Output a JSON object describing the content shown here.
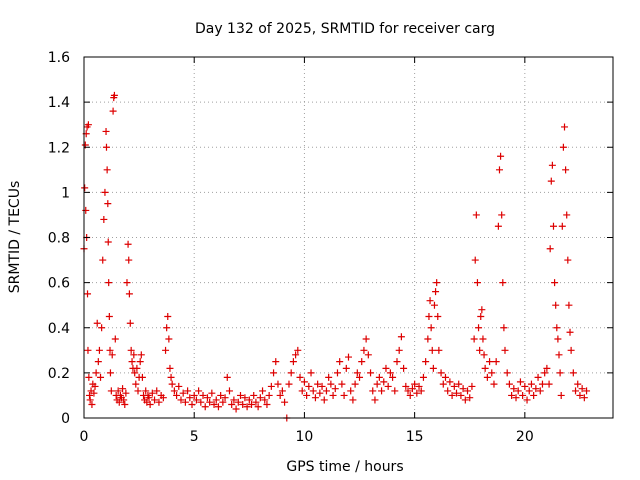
{
  "chart_data": {
    "type": "scatter",
    "title": "Day 132 of 2025, SRMTID for receiver carg",
    "xlabel": "GPS time / hours",
    "ylabel": "SRMTID / TECUs",
    "xlim": [
      0,
      24
    ],
    "ylim": [
      0,
      1.6
    ],
    "xticks": [
      0,
      5,
      10,
      15,
      20
    ],
    "xtick_labels": [
      "0",
      "5",
      "10",
      "15",
      "20"
    ],
    "yticks": [
      0,
      0.2,
      0.4,
      0.6,
      0.8,
      1,
      1.2,
      1.4,
      1.6
    ],
    "ytick_labels": [
      "0",
      "0.2",
      "0.4",
      "0.6",
      "0.8",
      "1",
      "1.2",
      "1.4",
      "1.6"
    ],
    "grid": true,
    "marker": "plus",
    "marker_color": "#dd0000",
    "series": [
      {
        "name": "SRMTID",
        "points": [
          [
            0.0,
            0.75
          ],
          [
            0.03,
            1.02
          ],
          [
            0.06,
            1.21
          ],
          [
            0.08,
            0.92
          ],
          [
            0.1,
            1.26
          ],
          [
            0.12,
            0.8
          ],
          [
            0.14,
            1.29
          ],
          [
            0.16,
            0.55
          ],
          [
            0.18,
            0.3
          ],
          [
            0.2,
            1.3
          ],
          [
            0.22,
            0.18
          ],
          [
            0.25,
            0.1
          ],
          [
            0.28,
            0.08
          ],
          [
            0.32,
            0.12
          ],
          [
            0.36,
            0.06
          ],
          [
            0.4,
            0.15
          ],
          [
            0.45,
            0.11
          ],
          [
            0.5,
            0.14
          ],
          [
            0.55,
            0.2
          ],
          [
            0.6,
            0.42
          ],
          [
            0.65,
            0.25
          ],
          [
            0.7,
            0.3
          ],
          [
            0.75,
            0.18
          ],
          [
            0.8,
            0.4
          ],
          [
            0.85,
            0.7
          ],
          [
            0.9,
            0.88
          ],
          [
            0.95,
            1.0
          ],
          [
            1.0,
            1.27
          ],
          [
            1.02,
            1.2
          ],
          [
            1.05,
            1.1
          ],
          [
            1.08,
            0.95
          ],
          [
            1.1,
            0.78
          ],
          [
            1.12,
            0.6
          ],
          [
            1.15,
            0.45
          ],
          [
            1.18,
            0.3
          ],
          [
            1.2,
            0.2
          ],
          [
            1.24,
            0.12
          ],
          [
            1.28,
            0.28
          ],
          [
            1.32,
            1.36
          ],
          [
            1.35,
            1.42
          ],
          [
            1.38,
            1.43
          ],
          [
            1.42,
            0.35
          ],
          [
            1.46,
            0.1
          ],
          [
            1.5,
            0.08
          ],
          [
            1.55,
            0.12
          ],
          [
            1.6,
            0.07
          ],
          [
            1.65,
            0.1
          ],
          [
            1.7,
            0.09
          ],
          [
            1.75,
            0.13
          ],
          [
            1.8,
            0.08
          ],
          [
            1.85,
            0.06
          ],
          [
            1.9,
            0.11
          ],
          [
            1.95,
            0.6
          ],
          [
            2.0,
            0.77
          ],
          [
            2.03,
            0.7
          ],
          [
            2.06,
            0.55
          ],
          [
            2.1,
            0.42
          ],
          [
            2.14,
            0.3
          ],
          [
            2.18,
            0.25
          ],
          [
            2.22,
            0.22
          ],
          [
            2.26,
            0.28
          ],
          [
            2.3,
            0.2
          ],
          [
            2.35,
            0.15
          ],
          [
            2.4,
            0.22
          ],
          [
            2.45,
            0.12
          ],
          [
            2.5,
            0.18
          ],
          [
            2.55,
            0.25
          ],
          [
            2.6,
            0.28
          ],
          [
            2.65,
            0.18
          ],
          [
            2.7,
            0.1
          ],
          [
            2.75,
            0.08
          ],
          [
            2.8,
            0.12
          ],
          [
            2.85,
            0.07
          ],
          [
            2.9,
            0.1
          ],
          [
            2.95,
            0.09
          ],
          [
            3.0,
            0.06
          ],
          [
            3.1,
            0.11
          ],
          [
            3.2,
            0.08
          ],
          [
            3.3,
            0.12
          ],
          [
            3.4,
            0.07
          ],
          [
            3.5,
            0.1
          ],
          [
            3.6,
            0.09
          ],
          [
            3.7,
            0.3
          ],
          [
            3.75,
            0.4
          ],
          [
            3.8,
            0.45
          ],
          [
            3.85,
            0.35
          ],
          [
            3.9,
            0.22
          ],
          [
            3.95,
            0.18
          ],
          [
            4.0,
            0.15
          ],
          [
            4.1,
            0.12
          ],
          [
            4.2,
            0.1
          ],
          [
            4.3,
            0.14
          ],
          [
            4.4,
            0.08
          ],
          [
            4.5,
            0.11
          ],
          [
            4.6,
            0.07
          ],
          [
            4.7,
            0.12
          ],
          [
            4.8,
            0.09
          ],
          [
            4.9,
            0.06
          ],
          [
            5.0,
            0.1
          ],
          [
            5.1,
            0.08
          ],
          [
            5.2,
            0.12
          ],
          [
            5.3,
            0.07
          ],
          [
            5.4,
            0.1
          ],
          [
            5.5,
            0.05
          ],
          [
            5.6,
            0.09
          ],
          [
            5.7,
            0.07
          ],
          [
            5.8,
            0.11
          ],
          [
            5.9,
            0.06
          ],
          [
            6.0,
            0.08
          ],
          [
            6.1,
            0.05
          ],
          [
            6.2,
            0.1
          ],
          [
            6.3,
            0.07
          ],
          [
            6.4,
            0.09
          ],
          [
            6.5,
            0.18
          ],
          [
            6.6,
            0.12
          ],
          [
            6.7,
            0.06
          ],
          [
            6.8,
            0.08
          ],
          [
            6.9,
            0.04
          ],
          [
            7.0,
            0.07
          ],
          [
            7.1,
            0.1
          ],
          [
            7.2,
            0.06
          ],
          [
            7.3,
            0.09
          ],
          [
            7.4,
            0.05
          ],
          [
            7.5,
            0.08
          ],
          [
            7.6,
            0.06
          ],
          [
            7.7,
            0.1
          ],
          [
            7.8,
            0.07
          ],
          [
            7.9,
            0.05
          ],
          [
            8.0,
            0.09
          ],
          [
            8.1,
            0.12
          ],
          [
            8.2,
            0.08
          ],
          [
            8.3,
            0.06
          ],
          [
            8.4,
            0.1
          ],
          [
            8.5,
            0.14
          ],
          [
            8.6,
            0.2
          ],
          [
            8.7,
            0.25
          ],
          [
            8.8,
            0.15
          ],
          [
            8.9,
            0.1
          ],
          [
            9.0,
            0.12
          ],
          [
            9.1,
            0.07
          ],
          [
            9.2,
            0.0
          ],
          [
            9.3,
            0.15
          ],
          [
            9.4,
            0.2
          ],
          [
            9.5,
            0.25
          ],
          [
            9.6,
            0.28
          ],
          [
            9.7,
            0.3
          ],
          [
            9.8,
            0.18
          ],
          [
            9.9,
            0.12
          ],
          [
            10.0,
            0.16
          ],
          [
            10.1,
            0.1
          ],
          [
            10.2,
            0.14
          ],
          [
            10.3,
            0.2
          ],
          [
            10.4,
            0.12
          ],
          [
            10.5,
            0.09
          ],
          [
            10.6,
            0.15
          ],
          [
            10.7,
            0.11
          ],
          [
            10.8,
            0.14
          ],
          [
            10.9,
            0.08
          ],
          [
            11.0,
            0.12
          ],
          [
            11.1,
            0.18
          ],
          [
            11.2,
            0.15
          ],
          [
            11.3,
            0.1
          ],
          [
            11.4,
            0.13
          ],
          [
            11.5,
            0.2
          ],
          [
            11.6,
            0.25
          ],
          [
            11.7,
            0.15
          ],
          [
            11.8,
            0.1
          ],
          [
            11.9,
            0.22
          ],
          [
            12.0,
            0.27
          ],
          [
            12.1,
            0.12
          ],
          [
            12.2,
            0.08
          ],
          [
            12.3,
            0.15
          ],
          [
            12.4,
            0.2
          ],
          [
            12.5,
            0.18
          ],
          [
            12.6,
            0.25
          ],
          [
            12.7,
            0.3
          ],
          [
            12.8,
            0.35
          ],
          [
            12.9,
            0.28
          ],
          [
            13.0,
            0.2
          ],
          [
            13.1,
            0.12
          ],
          [
            13.2,
            0.08
          ],
          [
            13.3,
            0.15
          ],
          [
            13.4,
            0.18
          ],
          [
            13.5,
            0.12
          ],
          [
            13.6,
            0.16
          ],
          [
            13.7,
            0.22
          ],
          [
            13.8,
            0.14
          ],
          [
            13.9,
            0.2
          ],
          [
            14.0,
            0.18
          ],
          [
            14.1,
            0.12
          ],
          [
            14.2,
            0.25
          ],
          [
            14.3,
            0.3
          ],
          [
            14.4,
            0.36
          ],
          [
            14.5,
            0.22
          ],
          [
            14.6,
            0.14
          ],
          [
            14.7,
            0.12
          ],
          [
            14.8,
            0.1
          ],
          [
            14.9,
            0.13
          ],
          [
            15.0,
            0.15
          ],
          [
            15.1,
            0.11
          ],
          [
            15.2,
            0.14
          ],
          [
            15.3,
            0.12
          ],
          [
            15.4,
            0.18
          ],
          [
            15.5,
            0.25
          ],
          [
            15.6,
            0.35
          ],
          [
            15.65,
            0.45
          ],
          [
            15.7,
            0.52
          ],
          [
            15.75,
            0.4
          ],
          [
            15.8,
            0.3
          ],
          [
            15.85,
            0.22
          ],
          [
            15.9,
            0.5
          ],
          [
            15.95,
            0.56
          ],
          [
            16.0,
            0.6
          ],
          [
            16.05,
            0.45
          ],
          [
            16.1,
            0.3
          ],
          [
            16.2,
            0.2
          ],
          [
            16.3,
            0.15
          ],
          [
            16.4,
            0.18
          ],
          [
            16.5,
            0.12
          ],
          [
            16.6,
            0.16
          ],
          [
            16.7,
            0.1
          ],
          [
            16.8,
            0.14
          ],
          [
            16.9,
            0.11
          ],
          [
            17.0,
            0.15
          ],
          [
            17.1,
            0.1
          ],
          [
            17.2,
            0.13
          ],
          [
            17.3,
            0.08
          ],
          [
            17.4,
            0.12
          ],
          [
            17.5,
            0.09
          ],
          [
            17.6,
            0.14
          ],
          [
            17.7,
            0.35
          ],
          [
            17.75,
            0.7
          ],
          [
            17.8,
            0.9
          ],
          [
            17.85,
            0.6
          ],
          [
            17.9,
            0.4
          ],
          [
            17.95,
            0.3
          ],
          [
            18.0,
            0.45
          ],
          [
            18.05,
            0.48
          ],
          [
            18.1,
            0.35
          ],
          [
            18.15,
            0.28
          ],
          [
            18.2,
            0.22
          ],
          [
            18.3,
            0.18
          ],
          [
            18.4,
            0.25
          ],
          [
            18.5,
            0.2
          ],
          [
            18.6,
            0.15
          ],
          [
            18.7,
            0.25
          ],
          [
            18.8,
            0.85
          ],
          [
            18.85,
            1.1
          ],
          [
            18.9,
            1.16
          ],
          [
            18.95,
            0.9
          ],
          [
            19.0,
            0.6
          ],
          [
            19.05,
            0.4
          ],
          [
            19.1,
            0.3
          ],
          [
            19.2,
            0.2
          ],
          [
            19.3,
            0.15
          ],
          [
            19.4,
            0.1
          ],
          [
            19.5,
            0.13
          ],
          [
            19.6,
            0.09
          ],
          [
            19.7,
            0.12
          ],
          [
            19.8,
            0.16
          ],
          [
            19.9,
            0.1
          ],
          [
            20.0,
            0.14
          ],
          [
            20.1,
            0.08
          ],
          [
            20.2,
            0.12
          ],
          [
            20.3,
            0.15
          ],
          [
            20.4,
            0.1
          ],
          [
            20.5,
            0.13
          ],
          [
            20.6,
            0.18
          ],
          [
            20.7,
            0.12
          ],
          [
            20.8,
            0.15
          ],
          [
            20.9,
            0.2
          ],
          [
            21.0,
            0.22
          ],
          [
            21.1,
            0.15
          ],
          [
            21.15,
            0.75
          ],
          [
            21.2,
            1.05
          ],
          [
            21.25,
            1.12
          ],
          [
            21.3,
            0.85
          ],
          [
            21.35,
            0.6
          ],
          [
            21.4,
            0.5
          ],
          [
            21.45,
            0.4
          ],
          [
            21.5,
            0.35
          ],
          [
            21.55,
            0.28
          ],
          [
            21.6,
            0.2
          ],
          [
            21.65,
            0.1
          ],
          [
            21.7,
            0.85
          ],
          [
            21.75,
            1.2
          ],
          [
            21.8,
            1.29
          ],
          [
            21.85,
            1.1
          ],
          [
            21.9,
            0.9
          ],
          [
            21.95,
            0.7
          ],
          [
            22.0,
            0.5
          ],
          [
            22.05,
            0.38
          ],
          [
            22.1,
            0.3
          ],
          [
            22.2,
            0.2
          ],
          [
            22.3,
            0.12
          ],
          [
            22.4,
            0.15
          ],
          [
            22.5,
            0.1
          ],
          [
            22.6,
            0.13
          ],
          [
            22.7,
            0.09
          ],
          [
            22.8,
            0.12
          ]
        ]
      }
    ]
  }
}
